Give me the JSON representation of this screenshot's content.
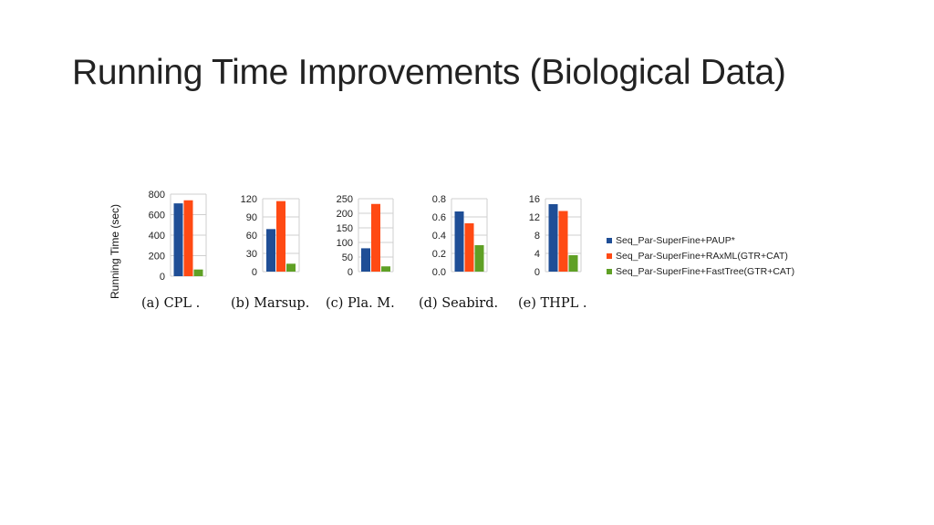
{
  "slide": {
    "title": "Running Time Improvements (Biological Data)",
    "y_axis_label": "Running Time (sec)"
  },
  "colors": {
    "series1": "#1f4e96",
    "series2": "#ff4a14",
    "series3": "#5fa025",
    "grid": "#cfcfcf"
  },
  "chart_data": [
    {
      "type": "bar",
      "caption": "(a) CPL .",
      "ylim": [
        0,
        800
      ],
      "yticks": [
        "0",
        "200",
        "400",
        "600",
        "800"
      ],
      "series": [
        {
          "name": "Seq_Par-SuperFine+PAUP*",
          "values": [
            710
          ]
        },
        {
          "name": "Seq_Par-SuperFine+RAxML(GTR+CAT)",
          "values": [
            740
          ]
        },
        {
          "name": "Seq_Par-SuperFine+FastTree(GTR+CAT)",
          "values": [
            65
          ]
        }
      ],
      "grid": true
    },
    {
      "type": "bar",
      "caption": "(b) Marsup.",
      "ylim": [
        0,
        120
      ],
      "yticks": [
        "0",
        "30",
        "60",
        "90",
        "120"
      ],
      "series": [
        {
          "name": "Seq_Par-SuperFine+PAUP*",
          "values": [
            70
          ]
        },
        {
          "name": "Seq_Par-SuperFine+RAxML(GTR+CAT)",
          "values": [
            116
          ]
        },
        {
          "name": "Seq_Par-SuperFine+FastTree(GTR+CAT)",
          "values": [
            13
          ]
        }
      ],
      "grid": true
    },
    {
      "type": "bar",
      "caption": "(c) Pla. M.",
      "ylim": [
        0,
        250
      ],
      "yticks": [
        "0",
        "50",
        "100",
        "150",
        "200",
        "250"
      ],
      "series": [
        {
          "name": "Seq_Par-SuperFine+PAUP*",
          "values": [
            80
          ]
        },
        {
          "name": "Seq_Par-SuperFine+RAxML(GTR+CAT)",
          "values": [
            232
          ]
        },
        {
          "name": "Seq_Par-SuperFine+FastTree(GTR+CAT)",
          "values": [
            18
          ]
        }
      ],
      "grid": true
    },
    {
      "type": "bar",
      "caption": "(d) Seabird.",
      "ylim": [
        0,
        0.8
      ],
      "yticks": [
        "0.0",
        "0.2",
        "0.4",
        "0.6",
        "0.8"
      ],
      "series": [
        {
          "name": "Seq_Par-SuperFine+PAUP*",
          "values": [
            0.66
          ]
        },
        {
          "name": "Seq_Par-SuperFine+RAxML(GTR+CAT)",
          "values": [
            0.53
          ]
        },
        {
          "name": "Seq_Par-SuperFine+FastTree(GTR+CAT)",
          "values": [
            0.29
          ]
        }
      ],
      "grid": true
    },
    {
      "type": "bar",
      "caption": "(e) THPL .",
      "ylim": [
        0,
        16
      ],
      "yticks": [
        "0",
        "4",
        "8",
        "12",
        "16"
      ],
      "series": [
        {
          "name": "Seq_Par-SuperFine+PAUP*",
          "values": [
            14.8
          ]
        },
        {
          "name": "Seq_Par-SuperFine+RAxML(GTR+CAT)",
          "values": [
            13.3
          ]
        },
        {
          "name": "Seq_Par-SuperFine+FastTree(GTR+CAT)",
          "values": [
            3.6
          ]
        }
      ],
      "grid": true
    }
  ],
  "legend": {
    "placement": "right",
    "items": [
      {
        "label": "Seq_Par-SuperFine+PAUP*",
        "color": "#1f4e96"
      },
      {
        "label": "Seq_Par-SuperFine+RAxML(GTR+CAT)",
        "color": "#ff4a14"
      },
      {
        "label": "Seq_Par-SuperFine+FastTree(GTR+CAT)",
        "color": "#5fa025"
      }
    ]
  }
}
